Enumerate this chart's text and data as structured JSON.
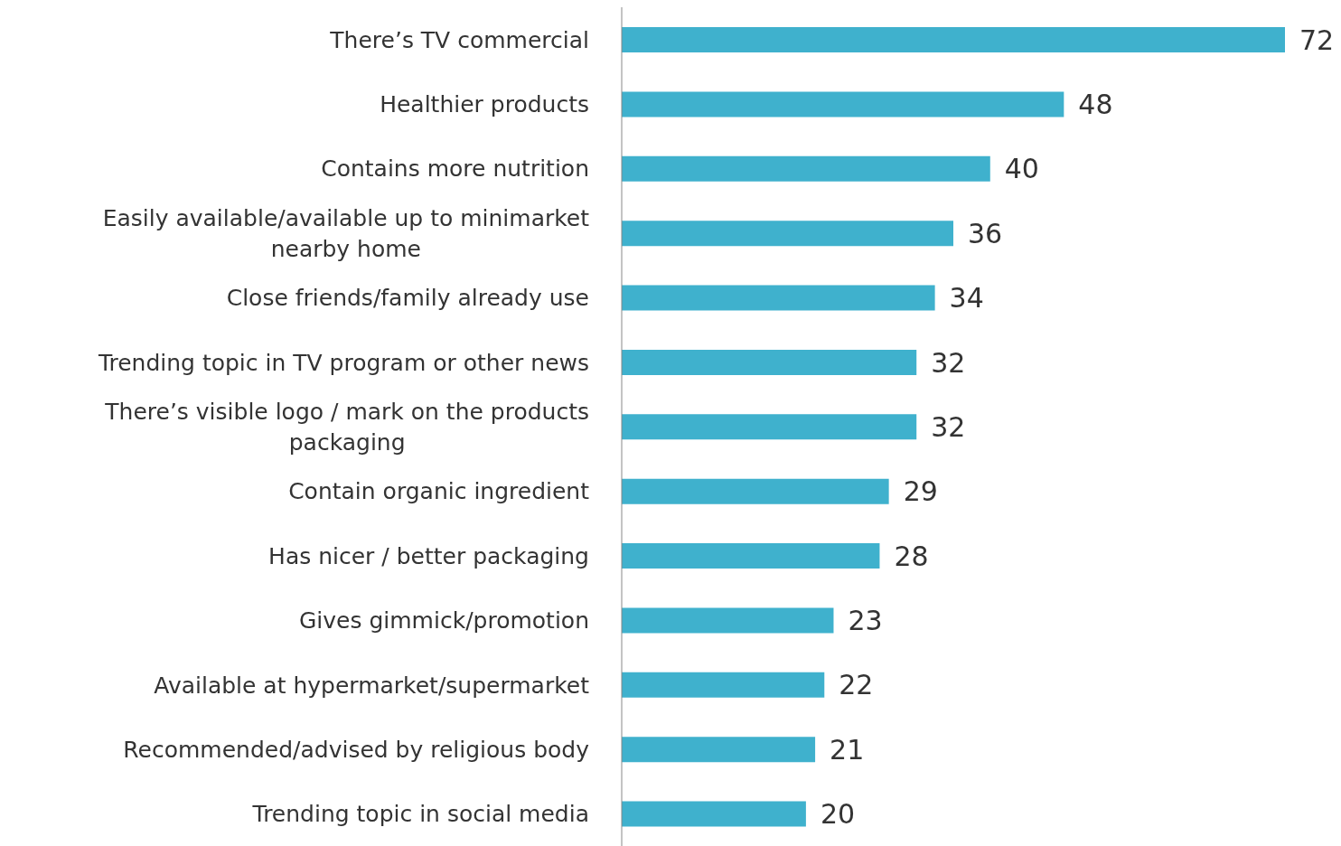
{
  "chart_data": {
    "type": "bar",
    "orientation": "horizontal",
    "categories": [
      "There’s TV commercial",
      "Healthier products",
      "Contains more nutrition",
      "Easily available/available up to minimarket nearby home",
      "Close friends/family already use",
      "Trending topic in TV program or other news",
      "There’s visible logo / mark on the products packaging",
      "Contain organic ingredient",
      "Has nicer / better packaging",
      "Gives gimmick/promotion",
      "Available at hypermarket/supermarket",
      "Recommended/advised by religious body",
      "Trending topic in social media"
    ],
    "values": [
      72,
      48,
      40,
      36,
      34,
      32,
      32,
      29,
      28,
      23,
      22,
      21,
      20
    ],
    "color": "#3fb1cd",
    "data_labels": true,
    "legend": false,
    "grid": false
  }
}
